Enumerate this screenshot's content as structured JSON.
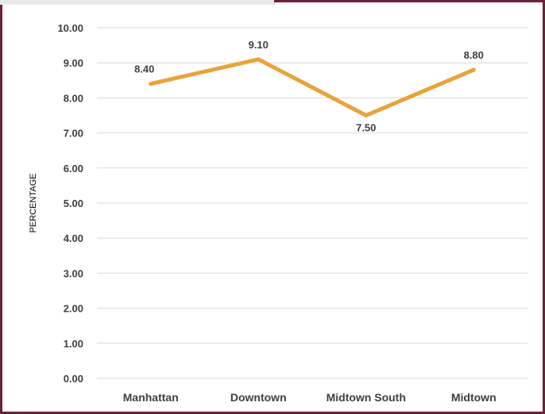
{
  "chart_data": {
    "type": "line",
    "title": "",
    "xlabel": "",
    "ylabel": "PERCENTAGE",
    "categories": [
      "Manhattan",
      "Downtown",
      "Midtown South",
      "Midtown"
    ],
    "series": [
      {
        "values": [
          8.4,
          9.1,
          7.5,
          8.8
        ],
        "color": "#e8a33a"
      }
    ],
    "data_labels": [
      "8.40",
      "9.10",
      "7.50",
      "8.80"
    ],
    "ylim": [
      0,
      10
    ],
    "yticks": [
      "0.00",
      "1.00",
      "2.00",
      "3.00",
      "4.00",
      "5.00",
      "6.00",
      "7.00",
      "8.00",
      "9.00",
      "10.00"
    ],
    "grid": true,
    "legend": "none",
    "colors": {
      "line": "#e8a33a",
      "grid": "#d9d9d9",
      "frame": "#6e1f3a"
    }
  }
}
